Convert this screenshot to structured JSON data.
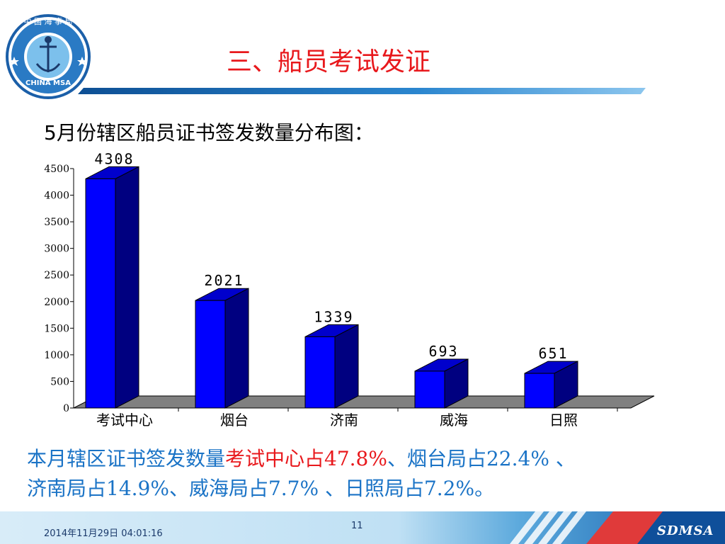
{
  "slide": {
    "title": "三、船员考试发证",
    "chart_heading": "5月份辖区船员证书签发数量分布图：",
    "summary": {
      "line1_a": "本月辖区证书签发数量",
      "line1_b": "考试中心占47.8%",
      "line1_c": "、烟台局占22.4% 、",
      "line2": "济南局占14.9%、威海局占7.7% 、日照局占7.2%。"
    },
    "footer": {
      "date": "2014年11月29日  04:01:16",
      "page": "11",
      "brand": "SDMSA"
    },
    "logo": {
      "top_text": "中 国 海 事 局",
      "bottom_text": "CHINA MSA"
    }
  },
  "colors": {
    "bar_front": "#0000ff",
    "bar_top": "#0000cc",
    "bar_side": "#000080",
    "floor": "#808080",
    "title": "#e8181c",
    "summary": "#1a73c6",
    "banner": "#1b6fb5"
  },
  "chart_data": {
    "type": "bar",
    "categories": [
      "考试中心",
      "烟台",
      "济南",
      "威海",
      "日照"
    ],
    "values": [
      4308,
      2021,
      1339,
      693,
      651
    ],
    "value_labels": [
      "4308",
      "2021",
      "1339",
      "693",
      "651"
    ],
    "y_ticks": [
      0,
      500,
      1000,
      1500,
      2000,
      2500,
      3000,
      3500,
      4000,
      4500
    ],
    "y_tick_labels": [
      "0",
      "500",
      "1000",
      "1500",
      "2000",
      "2500",
      "3000",
      "3500",
      "4000",
      "4500"
    ],
    "ylim": [
      0,
      4500
    ],
    "title": "",
    "xlabel": "",
    "ylabel": "",
    "grid": false,
    "legend": "none",
    "style": "3d"
  }
}
